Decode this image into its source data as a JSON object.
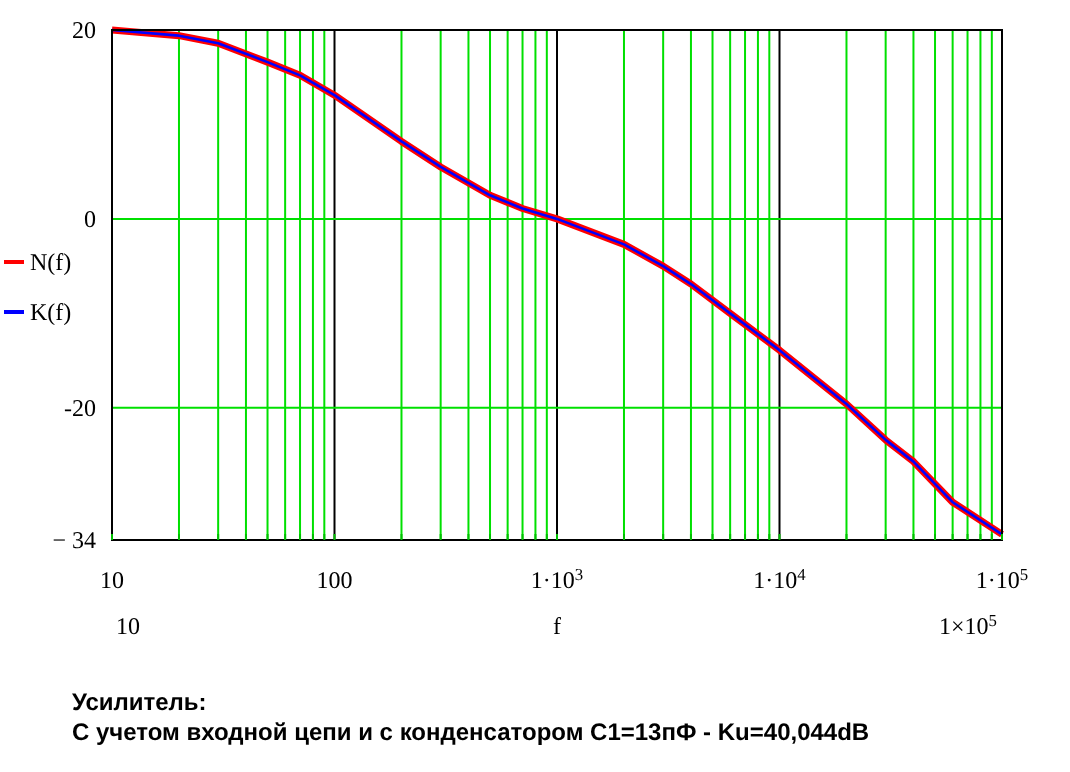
{
  "chart_data": {
    "type": "line",
    "x": [
      10,
      20,
      30,
      50,
      70,
      100,
      200,
      300,
      500,
      700,
      1000,
      2000,
      3000,
      4000,
      6000,
      10000,
      20000,
      30000,
      40000,
      60000,
      100000
    ],
    "series": [
      {
        "name": "N(f)",
        "color": "#ff0000",
        "values": [
          20,
          19.4,
          18.6,
          16.6,
          15.2,
          13.1,
          8.2,
          5.5,
          2.5,
          1.1,
          0,
          -2.7,
          -5,
          -6.9,
          -10,
          -13.9,
          -19.6,
          -23.4,
          -25.7,
          -30,
          -33.4
        ]
      },
      {
        "name": "K(f)",
        "color": "#0000ff",
        "values": [
          20,
          19.4,
          18.6,
          16.6,
          15.2,
          13.1,
          8.2,
          5.5,
          2.5,
          1.1,
          0,
          -2.7,
          -5,
          -6.9,
          -10,
          -13.9,
          -19.6,
          -23.4,
          -25.7,
          -30,
          -33.4
        ]
      }
    ],
    "log": "x",
    "xlim": [
      10,
      100000
    ],
    "xticks": [
      10,
      {
        "value": 20,
        "label": null
      },
      {
        "value": 30,
        "label": null
      },
      {
        "value": 40,
        "label": null
      },
      {
        "value": 50,
        "label": null
      },
      {
        "value": 60,
        "label": null
      },
      {
        "value": 70,
        "label": null
      },
      {
        "value": 80,
        "label": null
      },
      {
        "value": 90,
        "label": null
      },
      100,
      {
        "value": 200,
        "label": null
      },
      {
        "value": 300,
        "label": null
      },
      {
        "value": 400,
        "label": null
      },
      {
        "value": 500,
        "label": null
      },
      {
        "value": 600,
        "label": null
      },
      {
        "value": 700,
        "label": null
      },
      {
        "value": 800,
        "label": null
      },
      {
        "value": 900,
        "label": null
      },
      {
        "value": 1000,
        "label": "1·10$^{3}$"
      },
      {
        "value": 2000,
        "label": null
      },
      {
        "value": 3000,
        "label": null
      },
      {
        "value": 4000,
        "label": null
      },
      {
        "value": 5000,
        "label": null
      },
      {
        "value": 6000,
        "label": null
      },
      {
        "value": 7000,
        "label": null
      },
      {
        "value": 8000,
        "label": null
      },
      {
        "value": 9000,
        "label": null
      },
      {
        "value": 10000,
        "label": "1·10$^{4}$"
      },
      {
        "value": 20000,
        "label": null
      },
      {
        "value": 30000,
        "label": null
      },
      {
        "value": 40000,
        "label": null
      },
      {
        "value": 50000,
        "label": null
      },
      {
        "value": 60000,
        "label": null
      },
      {
        "value": 70000,
        "label": null
      },
      {
        "value": 80000,
        "label": null
      },
      {
        "value": 90000,
        "label": null
      },
      {
        "value": 100000,
        "label": "1·10$^{5}$"
      }
    ],
    "ylim": [
      -34,
      20
    ],
    "yticks": [
      20,
      0,
      -20,
      {
        "value": -34,
        "label": "− 34"
      }
    ],
    "xlabel": "f",
    "grid": true,
    "legend": "left",
    "line_style": "solid",
    "marker": "none",
    "annotations": [
      "10",
      "1×10$^{5}$",
      "Усилитель:",
      "С учетом входной цепи и с конденсатором C1=13пФ - Ku=40,044dB"
    ]
  }
}
